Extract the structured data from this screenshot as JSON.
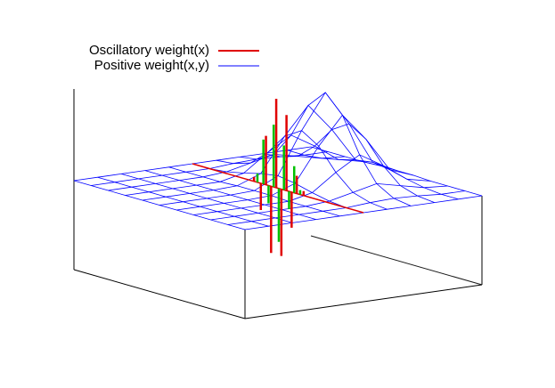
{
  "chart_data": {
    "type": "surface3d",
    "xlim": [
      0,
      1
    ],
    "ylim": [
      0,
      1
    ],
    "zlim": [
      -1,
      1
    ],
    "series": [
      {
        "name": "Oscillatory weight(x)",
        "color": "#e00000",
        "style": "impulses",
        "y": 0.5,
        "x": [
          0.36,
          0.4,
          0.43,
          0.46,
          0.49,
          0.52,
          0.55,
          0.58,
          0.61,
          0.65
        ],
        "values": [
          0.05,
          -0.3,
          0.55,
          -0.75,
          1.0,
          -0.75,
          0.85,
          -0.4,
          0.2,
          0.05
        ]
      },
      {
        "color": "#00c000",
        "style": "impulses",
        "y": 0.5,
        "x": [
          0.38,
          0.415,
          0.445,
          0.475,
          0.505,
          0.535,
          0.565,
          0.595,
          0.63
        ],
        "values": [
          0.1,
          0.5,
          -0.2,
          0.7,
          -0.6,
          0.5,
          -0.2,
          0.3,
          0.05
        ]
      },
      {
        "name": "Positive weight(x,y)",
        "color": "#0000ff",
        "style": "mesh",
        "x": [
          0,
          0.1,
          0.2,
          0.3,
          0.4,
          0.5,
          0.6,
          0.7,
          0.8,
          0.9,
          1
        ],
        "y": [
          0,
          0.1,
          0.2,
          0.3,
          0.4,
          0.5,
          0.6,
          0.7,
          0.8,
          0.9,
          1
        ],
        "values": [
          [
            0,
            0,
            0,
            0,
            0,
            0,
            0,
            0,
            0,
            0,
            0
          ],
          [
            0,
            0,
            0,
            0,
            0,
            0,
            0,
            0,
            0,
            0,
            0
          ],
          [
            0,
            0,
            0,
            0,
            0,
            0,
            0,
            0,
            0,
            0,
            0
          ],
          [
            0,
            0,
            0,
            0,
            0,
            0,
            0,
            0,
            0,
            0,
            0
          ],
          [
            0,
            0,
            0,
            0,
            0.01,
            0.01,
            0.01,
            0,
            0,
            0,
            0
          ],
          [
            0,
            0,
            0.02,
            0.06,
            0.11,
            0.14,
            0.11,
            0.06,
            0.02,
            0,
            0
          ],
          [
            0,
            0.02,
            0.08,
            0.25,
            0.49,
            0.61,
            0.49,
            0.25,
            0.08,
            0.02,
            0
          ],
          [
            0,
            0.03,
            0.14,
            0.41,
            0.8,
            1,
            0.8,
            0.41,
            0.14,
            0.03,
            0
          ],
          [
            0,
            0.02,
            0.08,
            0.25,
            0.49,
            0.61,
            0.49,
            0.25,
            0.08,
            0.02,
            0
          ],
          [
            0,
            0,
            0.02,
            0.06,
            0.11,
            0.14,
            0.11,
            0.06,
            0.02,
            0,
            0
          ],
          [
            0,
            0,
            0,
            0,
            0.01,
            0.01,
            0.01,
            0,
            0,
            0,
            0
          ]
        ]
      }
    ]
  }
}
